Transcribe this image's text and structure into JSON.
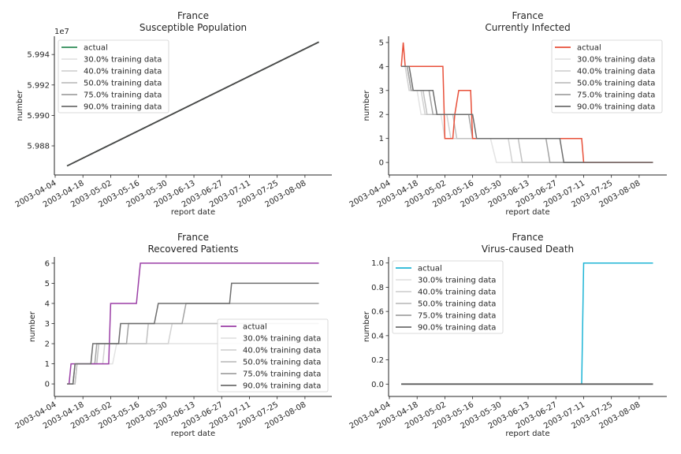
{
  "figure": {
    "x_axis_label": "report date",
    "y_axis_label": "number",
    "x_ticks": [
      "2003-04-04",
      "2003-04-18",
      "2003-05-02",
      "2003-05-16",
      "2003-05-30",
      "2003-06-13",
      "2003-06-27",
      "2003-07-11",
      "2003-07-25",
      "2003-08-08"
    ],
    "series_colors": {
      "30.0% training data": "#e3e3e3",
      "40.0% training data": "#d2d2d2",
      "50.0% training data": "#c1c1c1",
      "75.0% training data": "#a3a3a3",
      "90.0% training data": "#6e6e6e"
    }
  },
  "chart_data": [
    {
      "id": "susceptible",
      "type": "line",
      "title": "France\nSusceptible Population",
      "xlabel": "report date",
      "ylabel": "number",
      "y_offset_label": "1e7",
      "xlim": [
        "2003-04-04",
        "2003-08-22"
      ],
      "ylim": [
        59865000,
        59952000
      ],
      "y_ticks": [
        59880000,
        59900000,
        59920000,
        59940000
      ],
      "y_tick_labels": [
        "5.988",
        "5.990",
        "5.992",
        "5.994"
      ],
      "legend": {
        "placement": "upper-left",
        "entries": [
          "actual",
          "30.0% training data",
          "40.0% training data",
          "50.0% training data",
          "75.0% training data",
          "90.0% training data"
        ]
      },
      "actual_color": "#2e8b57",
      "series": [
        {
          "name": "actual",
          "points": [
            [
              "2003-04-10",
              59866800
            ],
            [
              "2003-08-15",
              59948200
            ]
          ]
        },
        {
          "name": "30.0% training data",
          "points": [
            [
              "2003-04-10",
              59866800
            ],
            [
              "2003-08-15",
              59948200
            ]
          ]
        },
        {
          "name": "40.0% training data",
          "points": [
            [
              "2003-04-10",
              59866800
            ],
            [
              "2003-08-15",
              59948200
            ]
          ]
        },
        {
          "name": "50.0% training data",
          "points": [
            [
              "2003-04-10",
              59866800
            ],
            [
              "2003-08-15",
              59948200
            ]
          ]
        },
        {
          "name": "75.0% training data",
          "points": [
            [
              "2003-04-10",
              59866800
            ],
            [
              "2003-08-15",
              59948200
            ]
          ]
        },
        {
          "name": "90.0% training data",
          "points": [
            [
              "2003-04-10",
              59866800
            ],
            [
              "2003-08-15",
              59948200
            ]
          ]
        }
      ]
    },
    {
      "id": "infected",
      "type": "line",
      "title": "France\nCurrently Infected",
      "xlabel": "report date",
      "ylabel": "number",
      "y_offset_label": "",
      "xlim": [
        "2003-04-04",
        "2003-08-22"
      ],
      "ylim": [
        -0.26,
        5.26
      ],
      "y_ticks": [
        0,
        1,
        2,
        3,
        4,
        5
      ],
      "y_tick_labels": [
        "0",
        "1",
        "2",
        "3",
        "4",
        "5"
      ],
      "legend": {
        "placement": "upper-right",
        "entries": [
          "actual",
          "30.0% training data",
          "40.0% training data",
          "50.0% training data",
          "75.0% training data",
          "90.0% training data"
        ]
      },
      "actual_color": "#e8503a",
      "series": [
        {
          "name": "actual",
          "points": [
            [
              "2003-04-10",
              4
            ],
            [
              "2003-04-11",
              5
            ],
            [
              "2003-04-12",
              4
            ],
            [
              "2003-05-01",
              4
            ],
            [
              "2003-05-02",
              1
            ],
            [
              "2003-05-06",
              1
            ],
            [
              "2003-05-07",
              2
            ],
            [
              "2003-05-09",
              3
            ],
            [
              "2003-05-15",
              3
            ],
            [
              "2003-05-16",
              1
            ],
            [
              "2003-07-10",
              1
            ],
            [
              "2003-07-11",
              0
            ],
            [
              "2003-08-15",
              0
            ]
          ]
        },
        {
          "name": "30.0% training data",
          "points": [
            [
              "2003-04-10",
              4
            ],
            [
              "2003-04-12",
              4
            ],
            [
              "2003-04-14",
              3
            ],
            [
              "2003-04-18",
              3
            ],
            [
              "2003-04-20",
              2
            ],
            [
              "2003-04-30",
              2
            ],
            [
              "2003-05-02",
              1
            ],
            [
              "2003-05-25",
              1
            ],
            [
              "2003-05-28",
              0
            ],
            [
              "2003-08-15",
              0
            ]
          ]
        },
        {
          "name": "40.0% training data",
          "points": [
            [
              "2003-04-10",
              4
            ],
            [
              "2003-04-12",
              4
            ],
            [
              "2003-04-14",
              3
            ],
            [
              "2003-04-20",
              3
            ],
            [
              "2003-04-22",
              2
            ],
            [
              "2003-05-03",
              2
            ],
            [
              "2003-05-05",
              1
            ],
            [
              "2003-06-03",
              1
            ],
            [
              "2003-06-05",
              0
            ],
            [
              "2003-08-15",
              0
            ]
          ]
        },
        {
          "name": "50.0% training data",
          "points": [
            [
              "2003-04-10",
              4
            ],
            [
              "2003-04-13",
              4
            ],
            [
              "2003-04-15",
              3
            ],
            [
              "2003-04-21",
              3
            ],
            [
              "2003-04-23",
              2
            ],
            [
              "2003-05-06",
              2
            ],
            [
              "2003-05-08",
              1
            ],
            [
              "2003-06-08",
              1
            ],
            [
              "2003-06-10",
              0
            ],
            [
              "2003-08-15",
              0
            ]
          ]
        },
        {
          "name": "75.0% training data",
          "points": [
            [
              "2003-04-10",
              4
            ],
            [
              "2003-04-13",
              4
            ],
            [
              "2003-04-15",
              3
            ],
            [
              "2003-04-24",
              3
            ],
            [
              "2003-04-26",
              2
            ],
            [
              "2003-05-14",
              2
            ],
            [
              "2003-05-16",
              1
            ],
            [
              "2003-06-22",
              1
            ],
            [
              "2003-06-24",
              0
            ],
            [
              "2003-08-15",
              0
            ]
          ]
        },
        {
          "name": "90.0% training data",
          "points": [
            [
              "2003-04-10",
              4
            ],
            [
              "2003-04-14",
              4
            ],
            [
              "2003-04-16",
              3
            ],
            [
              "2003-04-26",
              3
            ],
            [
              "2003-04-28",
              2
            ],
            [
              "2003-05-16",
              2
            ],
            [
              "2003-05-18",
              1
            ],
            [
              "2003-06-29",
              1
            ],
            [
              "2003-07-01",
              0
            ],
            [
              "2003-08-15",
              0
            ]
          ]
        }
      ]
    },
    {
      "id": "recovered",
      "type": "line",
      "title": "France\nRecovered Patients",
      "xlabel": "report date",
      "ylabel": "number",
      "y_offset_label": "",
      "xlim": [
        "2003-04-04",
        "2003-08-22"
      ],
      "ylim": [
        -0.31,
        6.31
      ],
      "y_ticks": [
        0,
        1,
        2,
        3,
        4,
        5,
        6
      ],
      "y_tick_labels": [
        "0",
        "1",
        "2",
        "3",
        "4",
        "5",
        "6"
      ],
      "legend": {
        "placement": "lower-right",
        "entries": [
          "actual",
          "30.0% training data",
          "40.0% training data",
          "50.0% training data",
          "75.0% training data",
          "90.0% training data"
        ]
      },
      "actual_color": "#9b3fa6",
      "series": [
        {
          "name": "actual",
          "points": [
            [
              "2003-04-10",
              0
            ],
            [
              "2003-04-11",
              0
            ],
            [
              "2003-04-12",
              1
            ],
            [
              "2003-05-01",
              1
            ],
            [
              "2003-05-02",
              4
            ],
            [
              "2003-05-15",
              4
            ],
            [
              "2003-05-17",
              6
            ],
            [
              "2003-08-15",
              6
            ]
          ]
        },
        {
          "name": "30.0% training data",
          "points": [
            [
              "2003-04-10",
              0
            ],
            [
              "2003-04-14",
              0
            ],
            [
              "2003-04-15",
              1
            ],
            [
              "2003-05-03",
              1
            ],
            [
              "2003-05-05",
              2
            ],
            [
              "2003-08-15",
              2
            ]
          ]
        },
        {
          "name": "40.0% training data",
          "points": [
            [
              "2003-04-10",
              0
            ],
            [
              "2003-04-14",
              0
            ],
            [
              "2003-04-15",
              1
            ],
            [
              "2003-04-28",
              1
            ],
            [
              "2003-04-29",
              2
            ],
            [
              "2003-05-31",
              2
            ],
            [
              "2003-06-02",
              3
            ],
            [
              "2003-08-15",
              3
            ]
          ]
        },
        {
          "name": "50.0% training data",
          "points": [
            [
              "2003-04-10",
              0
            ],
            [
              "2003-04-14",
              0
            ],
            [
              "2003-04-15",
              1
            ],
            [
              "2003-04-25",
              1
            ],
            [
              "2003-04-26",
              2
            ],
            [
              "2003-05-20",
              2
            ],
            [
              "2003-05-21",
              3
            ],
            [
              "2003-08-15",
              3
            ]
          ]
        },
        {
          "name": "75.0% training data",
          "points": [
            [
              "2003-04-10",
              0
            ],
            [
              "2003-04-13",
              0
            ],
            [
              "2003-04-14",
              1
            ],
            [
              "2003-04-24",
              1
            ],
            [
              "2003-04-25",
              2
            ],
            [
              "2003-05-10",
              2
            ],
            [
              "2003-05-11",
              3
            ],
            [
              "2003-06-07",
              3
            ],
            [
              "2003-06-09",
              4
            ],
            [
              "2003-08-15",
              4
            ]
          ]
        },
        {
          "name": "90.0% training data",
          "points": [
            [
              "2003-04-10",
              0
            ],
            [
              "2003-04-13",
              0
            ],
            [
              "2003-04-14",
              1
            ],
            [
              "2003-04-22",
              1
            ],
            [
              "2003-04-23",
              2
            ],
            [
              "2003-05-06",
              2
            ],
            [
              "2003-05-07",
              3
            ],
            [
              "2003-05-24",
              3
            ],
            [
              "2003-05-26",
              4
            ],
            [
              "2003-07-01",
              4
            ],
            [
              "2003-07-02",
              5
            ],
            [
              "2003-08-15",
              5
            ]
          ]
        }
      ]
    },
    {
      "id": "death",
      "type": "line",
      "title": "France\nVirus-caused Death",
      "xlabel": "report date",
      "ylabel": "number",
      "y_offset_label": "",
      "xlim": [
        "2003-04-04",
        "2003-08-22"
      ],
      "ylim": [
        -0.05,
        1.05
      ],
      "y_ticks": [
        0,
        0.2,
        0.4,
        0.6,
        0.8,
        1.0
      ],
      "y_tick_labels": [
        "0.0",
        "0.2",
        "0.4",
        "0.6",
        "0.8",
        "1.0"
      ],
      "legend": {
        "placement": "upper-left",
        "entries": [
          "actual",
          "30.0% training data",
          "40.0% training data",
          "50.0% training data",
          "75.0% training data",
          "90.0% training data"
        ]
      },
      "actual_color": "#1fb5d6",
      "series": [
        {
          "name": "actual",
          "points": [
            [
              "2003-04-10",
              0
            ],
            [
              "2003-07-10",
              0
            ],
            [
              "2003-07-11",
              1
            ],
            [
              "2003-08-15",
              1
            ]
          ]
        },
        {
          "name": "30.0% training data",
          "points": [
            [
              "2003-04-10",
              0
            ],
            [
              "2003-08-15",
              0
            ]
          ]
        },
        {
          "name": "40.0% training data",
          "points": [
            [
              "2003-04-10",
              0
            ],
            [
              "2003-08-15",
              0
            ]
          ]
        },
        {
          "name": "50.0% training data",
          "points": [
            [
              "2003-04-10",
              0
            ],
            [
              "2003-08-15",
              0
            ]
          ]
        },
        {
          "name": "75.0% training data",
          "points": [
            [
              "2003-04-10",
              0
            ],
            [
              "2003-08-15",
              0
            ]
          ]
        },
        {
          "name": "90.0% training data",
          "points": [
            [
              "2003-04-10",
              0
            ],
            [
              "2003-08-15",
              0
            ]
          ]
        }
      ]
    }
  ]
}
